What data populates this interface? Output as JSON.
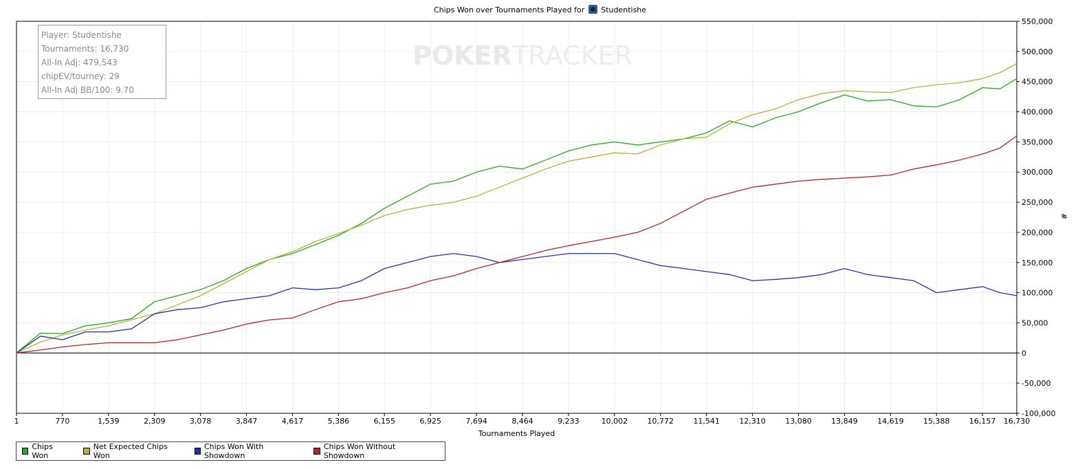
{
  "header": {
    "title_prefix": "Chips Won over Tournaments Played for",
    "player_name": "Studentishe",
    "logo_icon": "pokertracker-player-icon"
  },
  "watermark": {
    "part1": "POKER",
    "part2": "TRACKER"
  },
  "infobox": {
    "lines": [
      "Player: Studentishe",
      "Tournaments: 16,730",
      "All-In Adj: 479,543",
      "chipEV/tourney: 29",
      "All-In Adj BB/100: 9.70"
    ]
  },
  "chart_data": {
    "type": "line",
    "xlabel": "Tournaments Played",
    "ylabel": "#",
    "xlim": [
      1,
      16730
    ],
    "ylim": [
      -100000,
      550000
    ],
    "x_ticks": [
      1,
      770,
      1539,
      2309,
      3078,
      3847,
      4617,
      5386,
      6155,
      6925,
      7694,
      8464,
      9233,
      10002,
      10772,
      11541,
      12310,
      13080,
      13849,
      14619,
      15388,
      16157,
      16730
    ],
    "x_tick_labels": [
      "1",
      "770",
      "1,539",
      "2,309",
      "3,078",
      "3,847",
      "4,617",
      "5,386",
      "6,155",
      "6,925",
      "7,694",
      "8,464",
      "9,233",
      "10,002",
      "10,772",
      "11,541",
      "12,310",
      "13,080",
      "13,849",
      "14,619",
      "15,388",
      "16,157",
      "16,730"
    ],
    "y_ticks": [
      -100000,
      -50000,
      0,
      50000,
      100000,
      150000,
      200000,
      250000,
      300000,
      350000,
      400000,
      450000,
      500000,
      550000
    ],
    "y_tick_labels": [
      "-100,000",
      "-50,000",
      "0",
      "50,000",
      "100,000",
      "150,000",
      "200,000",
      "250,000",
      "300,000",
      "350,000",
      "400,000",
      "450,000",
      "500,000",
      "550,000"
    ],
    "grid": true,
    "legend_position": "bottom-left",
    "x": [
      1,
      400,
      770,
      1155,
      1539,
      1924,
      2309,
      2694,
      3078,
      3463,
      3847,
      4232,
      4617,
      5002,
      5386,
      5771,
      6155,
      6540,
      6925,
      7310,
      7694,
      8079,
      8464,
      8849,
      9233,
      9618,
      10002,
      10387,
      10772,
      11157,
      11541,
      11926,
      12310,
      12695,
      13080,
      13465,
      13849,
      14234,
      14619,
      15004,
      15388,
      15773,
      16157,
      16450,
      16730
    ],
    "series": [
      {
        "name": "Chips Won",
        "color": "#22aa22",
        "values": [
          0,
          33000,
          32000,
          45000,
          50000,
          57000,
          85000,
          95000,
          105000,
          120000,
          140000,
          155000,
          165000,
          180000,
          195000,
          215000,
          240000,
          260000,
          280000,
          285000,
          300000,
          310000,
          305000,
          320000,
          335000,
          345000,
          350000,
          345000,
          350000,
          355000,
          365000,
          385000,
          375000,
          390000,
          400000,
          415000,
          428000,
          418000,
          420000,
          410000,
          408000,
          420000,
          440000,
          438000,
          455000
        ]
      },
      {
        "name": "Net Expected Chips Won",
        "color": "#b8b035",
        "values": [
          0,
          18000,
          30000,
          38000,
          45000,
          55000,
          65000,
          80000,
          95000,
          115000,
          135000,
          155000,
          168000,
          185000,
          198000,
          212000,
          228000,
          238000,
          245000,
          250000,
          260000,
          275000,
          290000,
          305000,
          318000,
          325000,
          332000,
          330000,
          345000,
          355000,
          358000,
          380000,
          395000,
          405000,
          420000,
          430000,
          435000,
          433000,
          432000,
          440000,
          445000,
          448000,
          455000,
          465000,
          480000
        ]
      },
      {
        "name": "Chips Won With Showdown",
        "color": "#2233aa",
        "values": [
          0,
          28000,
          22000,
          35000,
          35000,
          40000,
          65000,
          72000,
          75000,
          85000,
          90000,
          95000,
          108000,
          105000,
          108000,
          120000,
          140000,
          150000,
          160000,
          165000,
          160000,
          150000,
          155000,
          160000,
          165000,
          165000,
          165000,
          155000,
          145000,
          140000,
          135000,
          130000,
          120000,
          122000,
          125000,
          130000,
          140000,
          130000,
          125000,
          120000,
          100000,
          105000,
          110000,
          100000,
          95000
        ]
      },
      {
        "name": "Chips Won Without Showdown",
        "color": "#bb2222",
        "values": [
          0,
          5000,
          10000,
          14000,
          17000,
          17000,
          17000,
          22000,
          30000,
          38000,
          48000,
          55000,
          58000,
          72000,
          85000,
          90000,
          100000,
          108000,
          120000,
          128000,
          140000,
          150000,
          160000,
          170000,
          178000,
          185000,
          192000,
          200000,
          215000,
          235000,
          255000,
          265000,
          275000,
          280000,
          285000,
          288000,
          290000,
          292000,
          295000,
          305000,
          312000,
          320000,
          330000,
          340000,
          360000
        ]
      }
    ]
  }
}
